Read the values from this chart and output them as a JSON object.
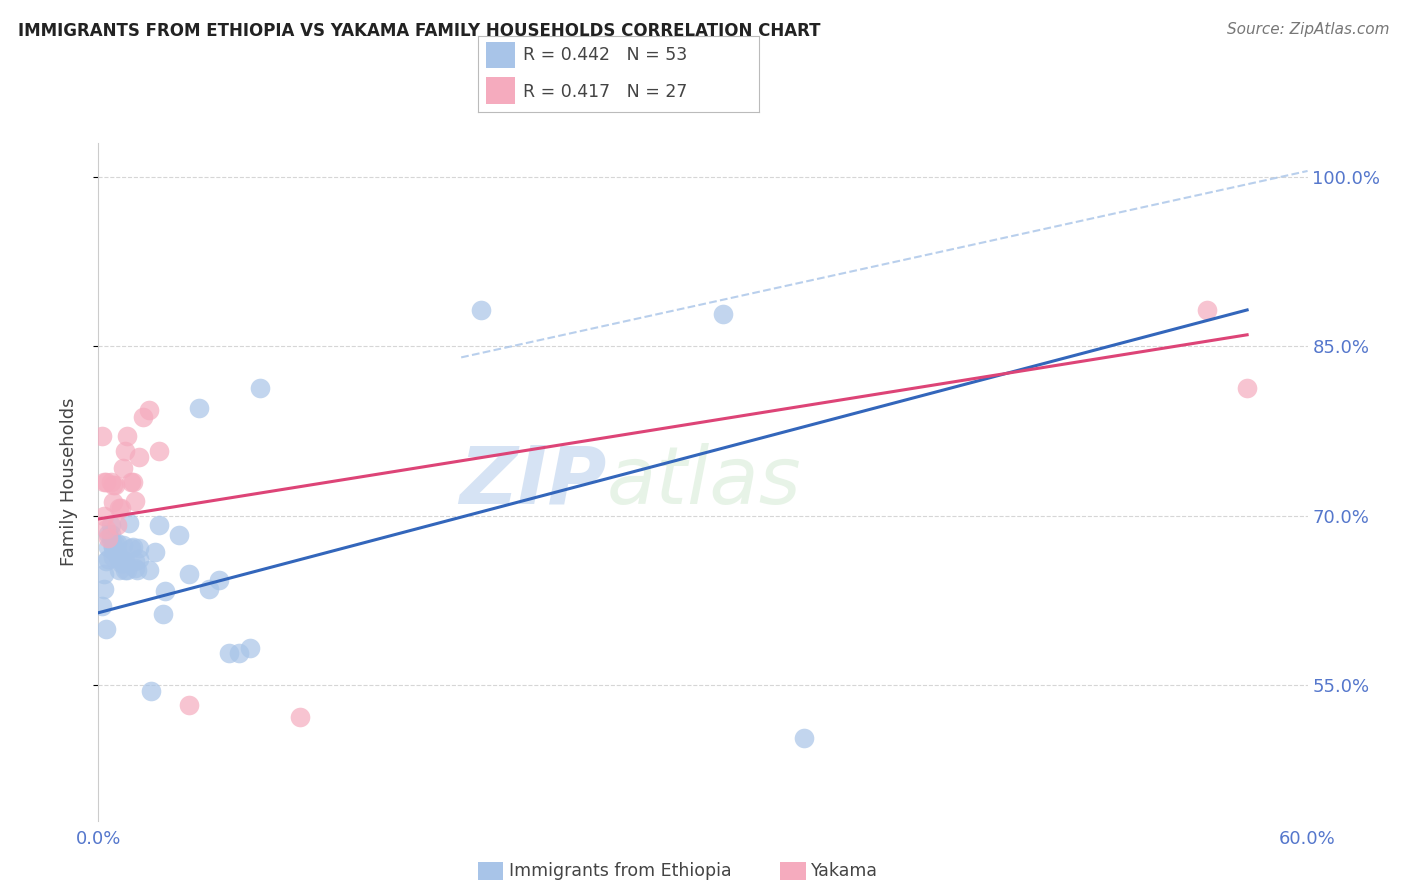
{
  "title": "IMMIGRANTS FROM ETHIOPIA VS YAKAMA FAMILY HOUSEHOLDS CORRELATION CHART",
  "source": "Source: ZipAtlas.com",
  "ylabel": "Family Households",
  "xlabel_blue": "Immigrants from Ethiopia",
  "xlabel_pink": "Yakama",
  "legend_blue_R": "0.442",
  "legend_blue_N": "53",
  "legend_pink_R": "0.417",
  "legend_pink_N": "27",
  "xlim": [
    0.0,
    0.6
  ],
  "ylim": [
    0.43,
    1.03
  ],
  "yticks": [
    0.55,
    0.7,
    0.85,
    1.0
  ],
  "xticks": [
    0.0,
    0.1,
    0.2,
    0.3,
    0.4,
    0.5,
    0.6
  ],
  "ytick_labels": [
    "55.0%",
    "70.0%",
    "85.0%",
    "100.0%"
  ],
  "blue_color": "#a8c4e8",
  "pink_color": "#f5abbe",
  "blue_line_color": "#3366bb",
  "pink_line_color": "#dd4477",
  "dashed_color": "#a8c4e8",
  "tick_color": "#5577cc",
  "watermark_zip": "ZIP",
  "watermark_atlas": "atlas",
  "blue_scatter_x": [
    0.002,
    0.003,
    0.003,
    0.004,
    0.004,
    0.005,
    0.005,
    0.005,
    0.006,
    0.006,
    0.006,
    0.007,
    0.007,
    0.007,
    0.008,
    0.008,
    0.009,
    0.009,
    0.01,
    0.01,
    0.011,
    0.011,
    0.012,
    0.012,
    0.013,
    0.013,
    0.014,
    0.015,
    0.016,
    0.017,
    0.018,
    0.018,
    0.019,
    0.02,
    0.02,
    0.025,
    0.026,
    0.028,
    0.03,
    0.032,
    0.033,
    0.04,
    0.045,
    0.05,
    0.055,
    0.06,
    0.065,
    0.07,
    0.075,
    0.08,
    0.19,
    0.31,
    0.35
  ],
  "blue_scatter_y": [
    0.62,
    0.635,
    0.648,
    0.66,
    0.6,
    0.662,
    0.672,
    0.684,
    0.678,
    0.684,
    0.692,
    0.663,
    0.672,
    0.672,
    0.668,
    0.675,
    0.668,
    0.676,
    0.652,
    0.662,
    0.658,
    0.662,
    0.658,
    0.674,
    0.652,
    0.66,
    0.652,
    0.693,
    0.671,
    0.672,
    0.66,
    0.654,
    0.652,
    0.671,
    0.662,
    0.652,
    0.545,
    0.668,
    0.692,
    0.613,
    0.633,
    0.683,
    0.648,
    0.795,
    0.635,
    0.643,
    0.578,
    0.578,
    0.583,
    0.813,
    0.882,
    0.878,
    0.503
  ],
  "pink_scatter_x": [
    0.002,
    0.003,
    0.003,
    0.004,
    0.004,
    0.005,
    0.006,
    0.007,
    0.007,
    0.008,
    0.009,
    0.01,
    0.011,
    0.012,
    0.013,
    0.014,
    0.016,
    0.017,
    0.018,
    0.02,
    0.022,
    0.025,
    0.03,
    0.045,
    0.1,
    0.55,
    0.57
  ],
  "pink_scatter_y": [
    0.77,
    0.73,
    0.7,
    0.73,
    0.688,
    0.68,
    0.73,
    0.712,
    0.727,
    0.727,
    0.692,
    0.707,
    0.707,
    0.742,
    0.757,
    0.77,
    0.73,
    0.73,
    0.713,
    0.752,
    0.787,
    0.793,
    0.757,
    0.532,
    0.522,
    0.882,
    0.813
  ],
  "blue_line_x": [
    0.0,
    0.57
  ],
  "blue_line_y": [
    0.614,
    0.882
  ],
  "pink_line_x": [
    0.0,
    0.57
  ],
  "pink_line_y": [
    0.697,
    0.86
  ],
  "dashed_line_x": [
    0.18,
    0.6
  ],
  "dashed_line_y": [
    0.84,
    1.005
  ]
}
